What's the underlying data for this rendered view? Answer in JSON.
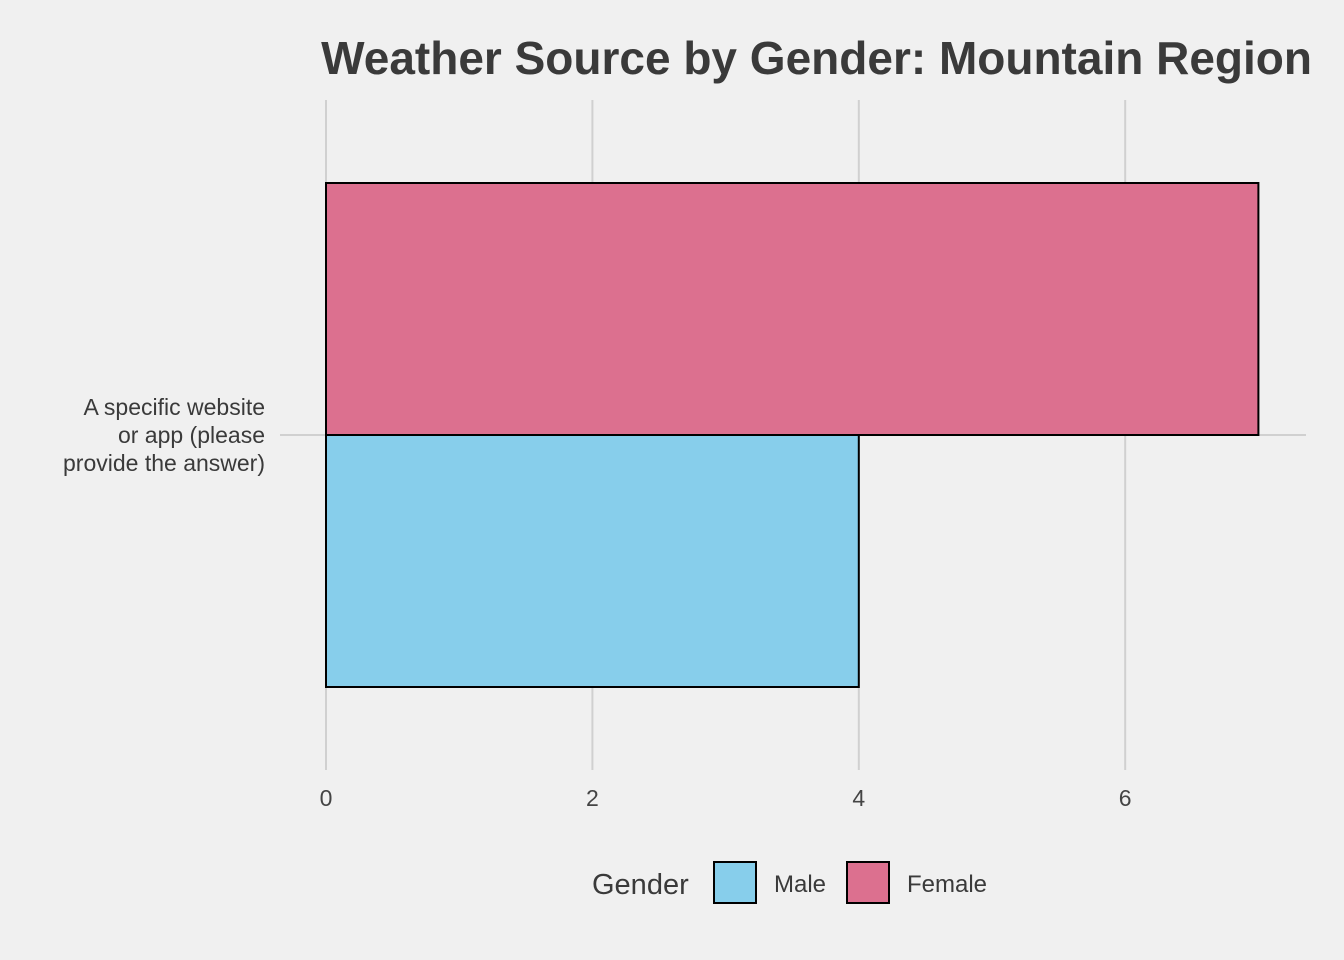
{
  "chart_data": {
    "type": "bar",
    "orientation": "horizontal",
    "title": "Weather Source by Gender: Mountain Region",
    "xlabel": "",
    "ylabel": "",
    "categories": [
      "A specific website or app (please provide the answer)"
    ],
    "category_lines": [
      [
        "A specific website",
        "or app (please",
        "provide the answer)"
      ]
    ],
    "series": [
      {
        "name": "Male",
        "values": [
          4
        ],
        "color": "#87CEEB"
      },
      {
        "name": "Female",
        "values": [
          7
        ],
        "color": "#DC708F"
      }
    ],
    "xlim": [
      0,
      7.3
    ],
    "xticks": [
      0,
      2,
      4,
      6
    ],
    "xtick_labels": [
      "0",
      "2",
      "4",
      "6"
    ],
    "grid": true,
    "legend": {
      "title": "Gender",
      "position": "bottom",
      "entries": [
        "Male",
        "Female"
      ]
    }
  },
  "colors": {
    "background": "#f0f0f0",
    "grid": "#d0d0d0",
    "bar_outline": "#000000"
  }
}
